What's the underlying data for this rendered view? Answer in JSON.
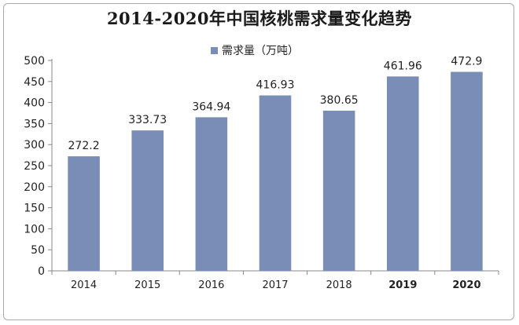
{
  "chart_data": {
    "type": "bar",
    "title": "2014-2020年中国核桃需求量变化趋势",
    "categories": [
      "2014",
      "2015",
      "2016",
      "2017",
      "2018",
      "2019",
      "2020"
    ],
    "series": [
      {
        "name": "需求量（万吨）",
        "values": [
          272.2,
          333.73,
          364.94,
          416.93,
          380.65,
          461.96,
          472.9
        ],
        "labels": [
          "272.2",
          "333.73",
          "364.94",
          "416.93",
          "380.65",
          "461.96",
          "472.9"
        ],
        "color": "#7a8db6"
      }
    ],
    "ylim": [
      0,
      500
    ],
    "yticks": [
      "0",
      "50",
      "100",
      "150",
      "200",
      "250",
      "300",
      "350",
      "400",
      "450",
      "500"
    ],
    "grid": false,
    "legend_position": "top-center"
  }
}
